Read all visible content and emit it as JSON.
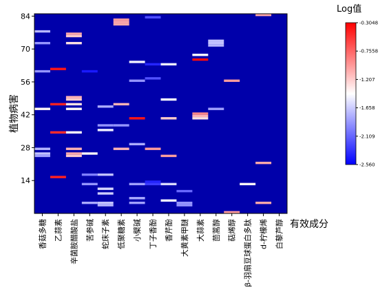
{
  "chart_data": {
    "type": "heatmap",
    "xlabel": "有效成分",
    "ylabel": "植物病害",
    "colorbar_title": "Log值",
    "categories": [
      "香菇多糖",
      "乙蒜素",
      "辛菌胺醋酸盐",
      "苦参碱",
      "蛇床子素",
      "低聚糖素",
      "小檗碱",
      "丁子香酚",
      "香芹酚",
      "大黄素甲醚",
      "大蒜素",
      "茴蒿醇",
      "萜烯醇",
      "β-羽扇豆球蛋白多肽",
      "d-柠檬烯",
      "白藜芦醇"
    ],
    "y_ticks": [
      14,
      28,
      42,
      56,
      70,
      84
    ],
    "y_range": [
      0,
      85
    ],
    "colorbar_ticks": [
      "-0.3048",
      "-0.7558",
      "-1.207",
      "-1.658",
      "-2.109",
      "-2.560"
    ],
    "color_range": [
      -2.56,
      -0.3048
    ],
    "background_value": -2.56,
    "cells": [
      [
        0,
        77,
        -1.75
      ],
      [
        0,
        72,
        -1.9
      ],
      [
        0,
        60,
        -1.9
      ],
      [
        0,
        44,
        -1.4
      ],
      [
        0,
        27,
        -1.75
      ],
      [
        0,
        25,
        -1.7
      ],
      [
        0,
        24,
        -1.85
      ],
      [
        1,
        61,
        -0.4
      ],
      [
        1,
        46,
        -0.45
      ],
      [
        1,
        34,
        -0.5
      ],
      [
        1,
        15,
        -0.45
      ],
      [
        2,
        76,
        -1.05
      ],
      [
        2,
        75,
        -1.2
      ],
      [
        2,
        72,
        -1.3
      ],
      [
        2,
        49,
        -1.1
      ],
      [
        2,
        48,
        -1.2
      ],
      [
        2,
        46,
        -1.3
      ],
      [
        2,
        44,
        -1.4
      ],
      [
        2,
        34,
        -1.4
      ],
      [
        2,
        27,
        -1.1
      ],
      [
        2,
        25,
        -1.05
      ],
      [
        2,
        24,
        -1.2
      ],
      [
        3,
        60,
        -2.45
      ],
      [
        3,
        25,
        -1.4
      ],
      [
        3,
        16,
        -2.0
      ],
      [
        3,
        12,
        -1.9
      ],
      [
        3,
        4,
        -1.8
      ],
      [
        4,
        45,
        -1.8
      ],
      [
        4,
        37,
        -1.9
      ],
      [
        4,
        35,
        -1.5
      ],
      [
        4,
        16,
        -1.7
      ],
      [
        4,
        10,
        -1.6
      ],
      [
        4,
        8,
        -1.65
      ],
      [
        4,
        4,
        -1.7
      ],
      [
        4,
        3,
        -1.75
      ],
      [
        5,
        82,
        -1.0
      ],
      [
        5,
        81,
        -1.05
      ],
      [
        5,
        80,
        -1.05
      ],
      [
        5,
        46,
        -1.1
      ],
      [
        5,
        37,
        -1.9
      ],
      [
        5,
        27,
        -1.1
      ],
      [
        6,
        64,
        -1.5
      ],
      [
        6,
        56,
        -1.9
      ],
      [
        6,
        40,
        -0.4
      ],
      [
        6,
        29,
        -1.8
      ],
      [
        6,
        12,
        -1.85
      ],
      [
        6,
        6,
        -1.8
      ],
      [
        6,
        4,
        -1.85
      ],
      [
        7,
        83,
        -2.2
      ],
      [
        7,
        63,
        -2.4
      ],
      [
        7,
        57,
        -2.2
      ],
      [
        7,
        27,
        -1.0
      ],
      [
        7,
        13,
        -2.4
      ],
      [
        7,
        12,
        -2.3
      ],
      [
        8,
        63,
        -1.5
      ],
      [
        8,
        48,
        -1.45
      ],
      [
        8,
        40,
        -1.2
      ],
      [
        8,
        24,
        -1.0
      ],
      [
        8,
        12,
        -1.6
      ],
      [
        8,
        5,
        -1.5
      ],
      [
        9,
        9,
        -2.1
      ],
      [
        9,
        4,
        -1.9
      ],
      [
        9,
        3,
        -1.9
      ],
      [
        10,
        67,
        -1.45
      ],
      [
        10,
        65,
        -0.35
      ],
      [
        10,
        42,
        -0.9
      ],
      [
        10,
        41,
        -1.1
      ],
      [
        10,
        40,
        -1.3
      ],
      [
        11,
        73,
        -1.7
      ],
      [
        11,
        72,
        -1.7
      ],
      [
        11,
        71,
        -1.75
      ],
      [
        11,
        44,
        -1.85
      ],
      [
        12,
        56,
        -1.0
      ],
      [
        12,
        0,
        -1.0
      ],
      [
        13,
        12,
        -1.4
      ],
      [
        14,
        84,
        -1.05
      ],
      [
        14,
        21,
        -1.05
      ],
      [
        14,
        4,
        -1.05
      ]
    ]
  }
}
